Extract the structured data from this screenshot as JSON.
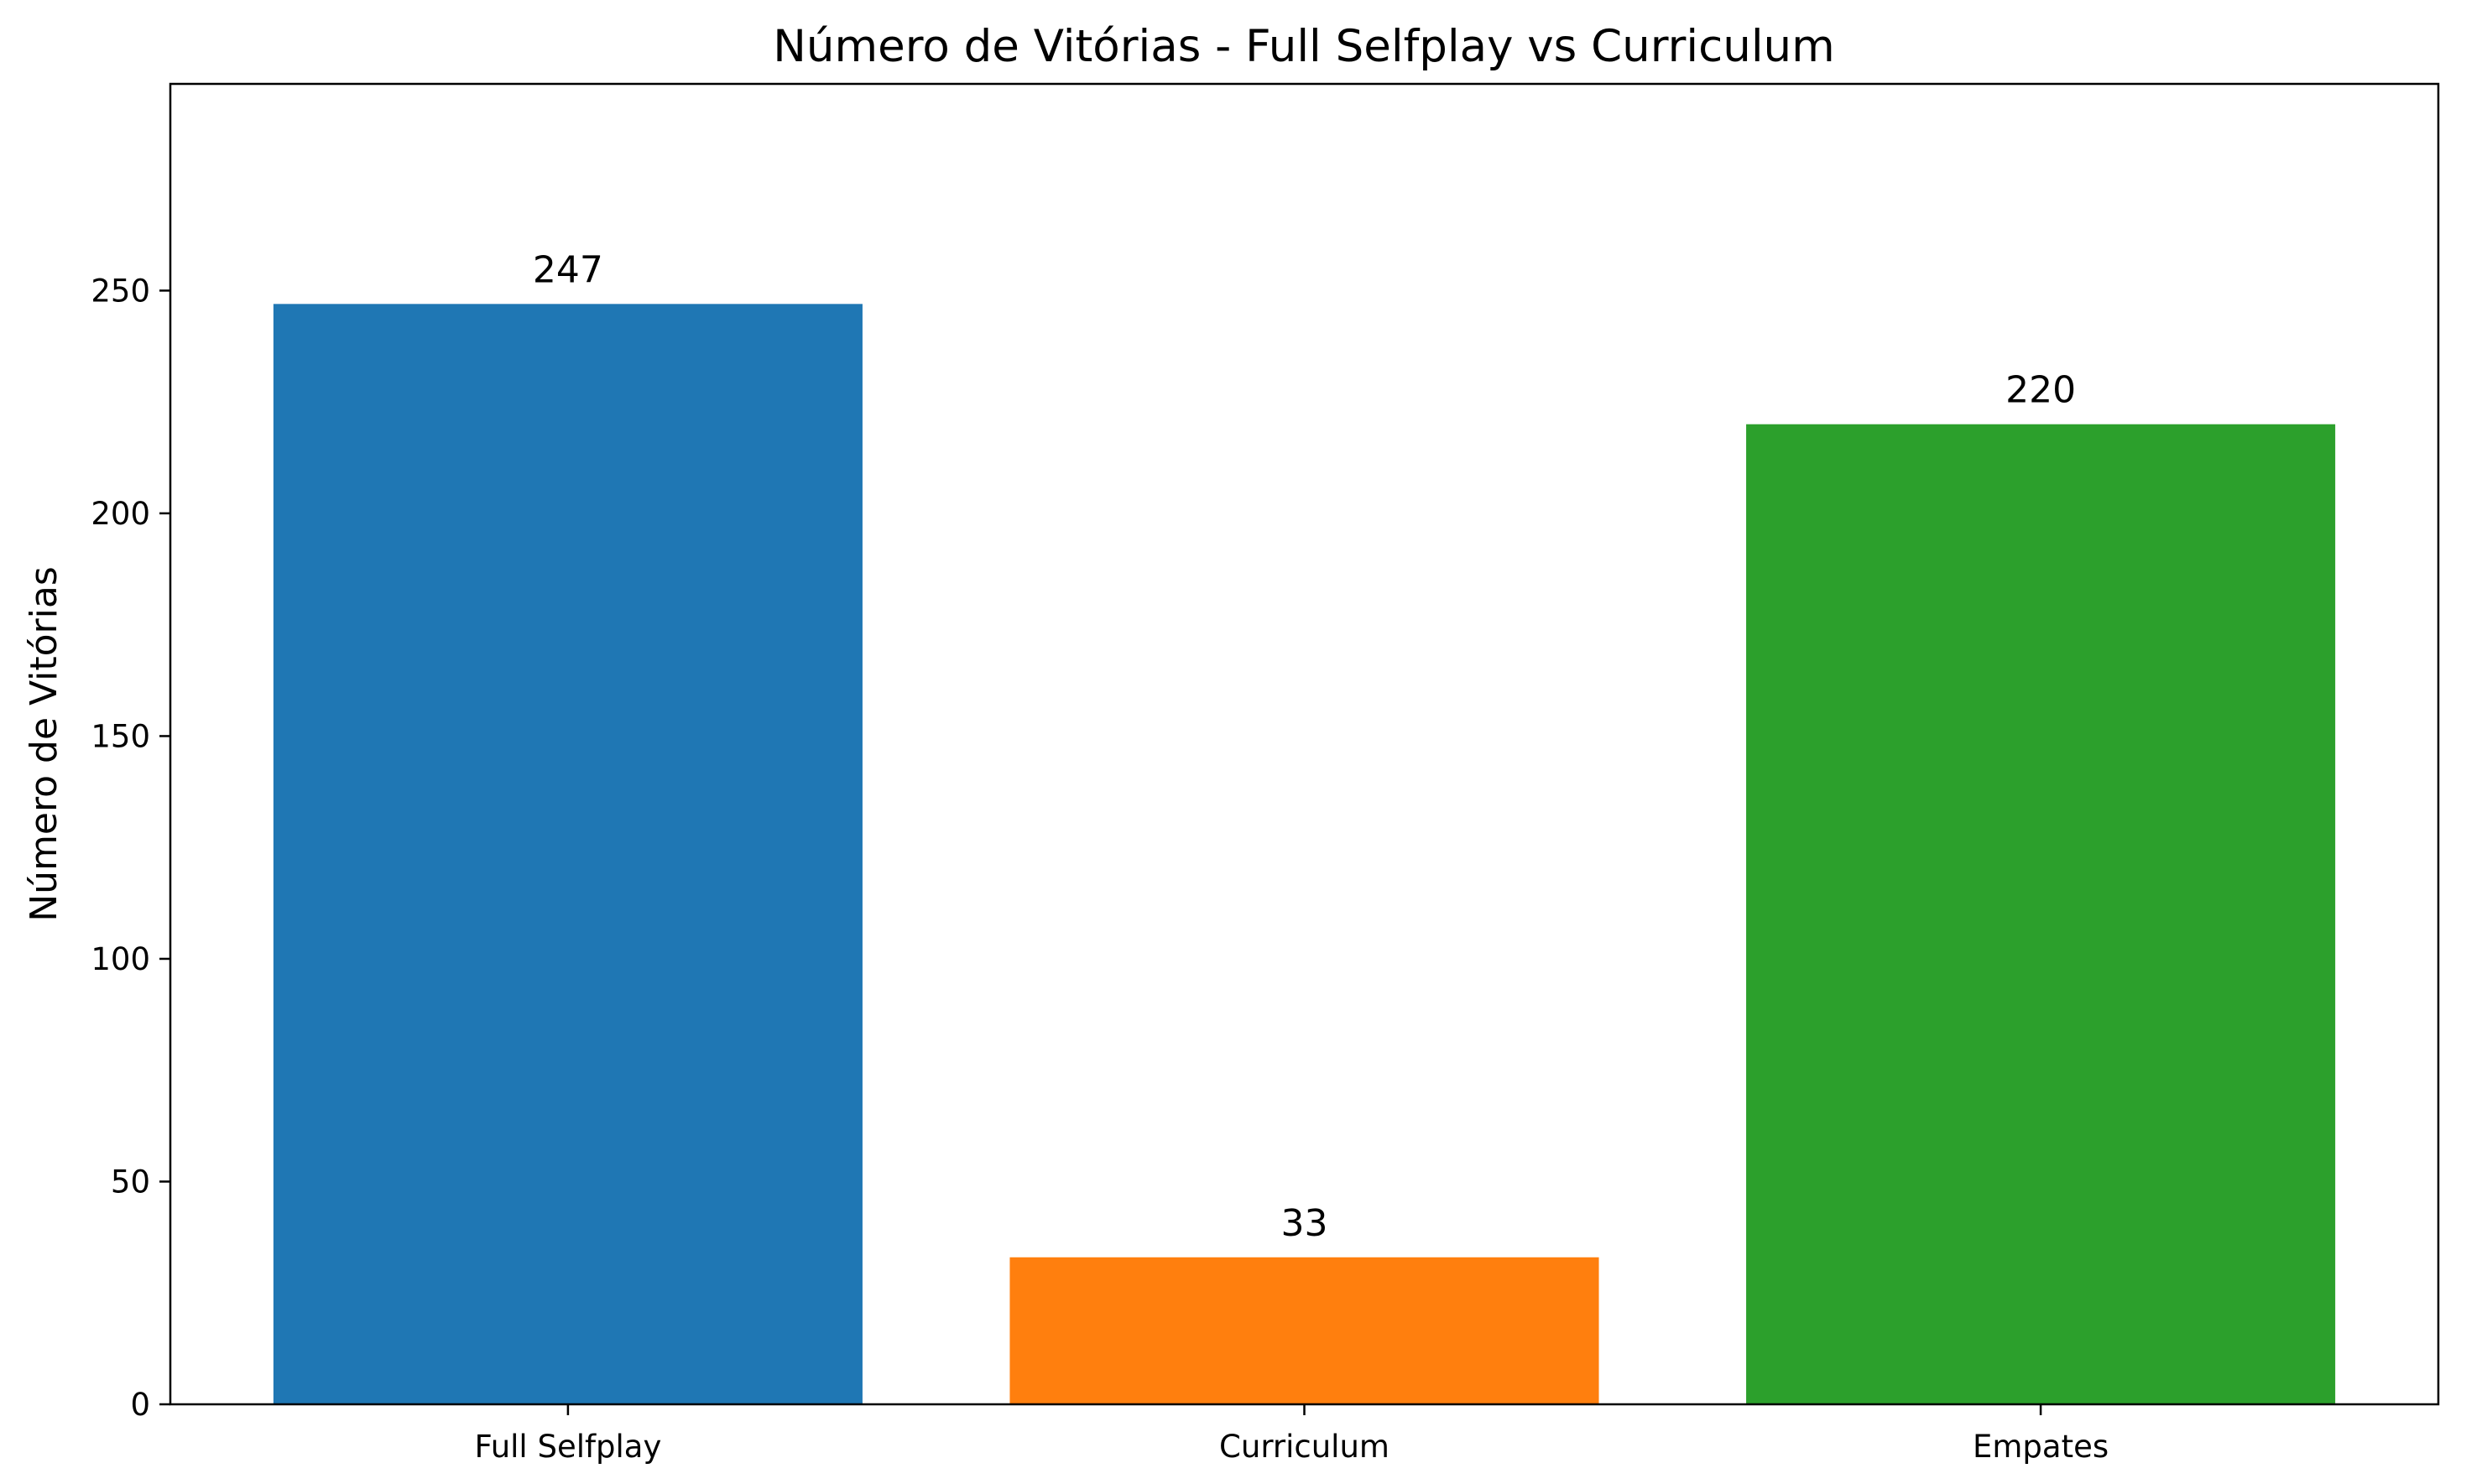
{
  "chart_data": {
    "type": "bar",
    "title": "Número de Vitórias - Full Selfplay vs Curriculum",
    "xlabel": "",
    "ylabel": "Número de Vitórias",
    "categories": [
      "Full Selfplay",
      "Curriculum",
      "Empates"
    ],
    "values": [
      247,
      33,
      220
    ],
    "value_labels": [
      "247",
      "33",
      "220"
    ],
    "colors": [
      "#1f77b4",
      "#ff7f0e",
      "#2ca02c"
    ],
    "ylim": [
      0,
      296.4
    ],
    "yticks": [
      0,
      50,
      100,
      150,
      200,
      250
    ],
    "ytick_labels": [
      "0",
      "50",
      "100",
      "150",
      "200",
      "250"
    ],
    "grid": false,
    "legend": "none"
  }
}
